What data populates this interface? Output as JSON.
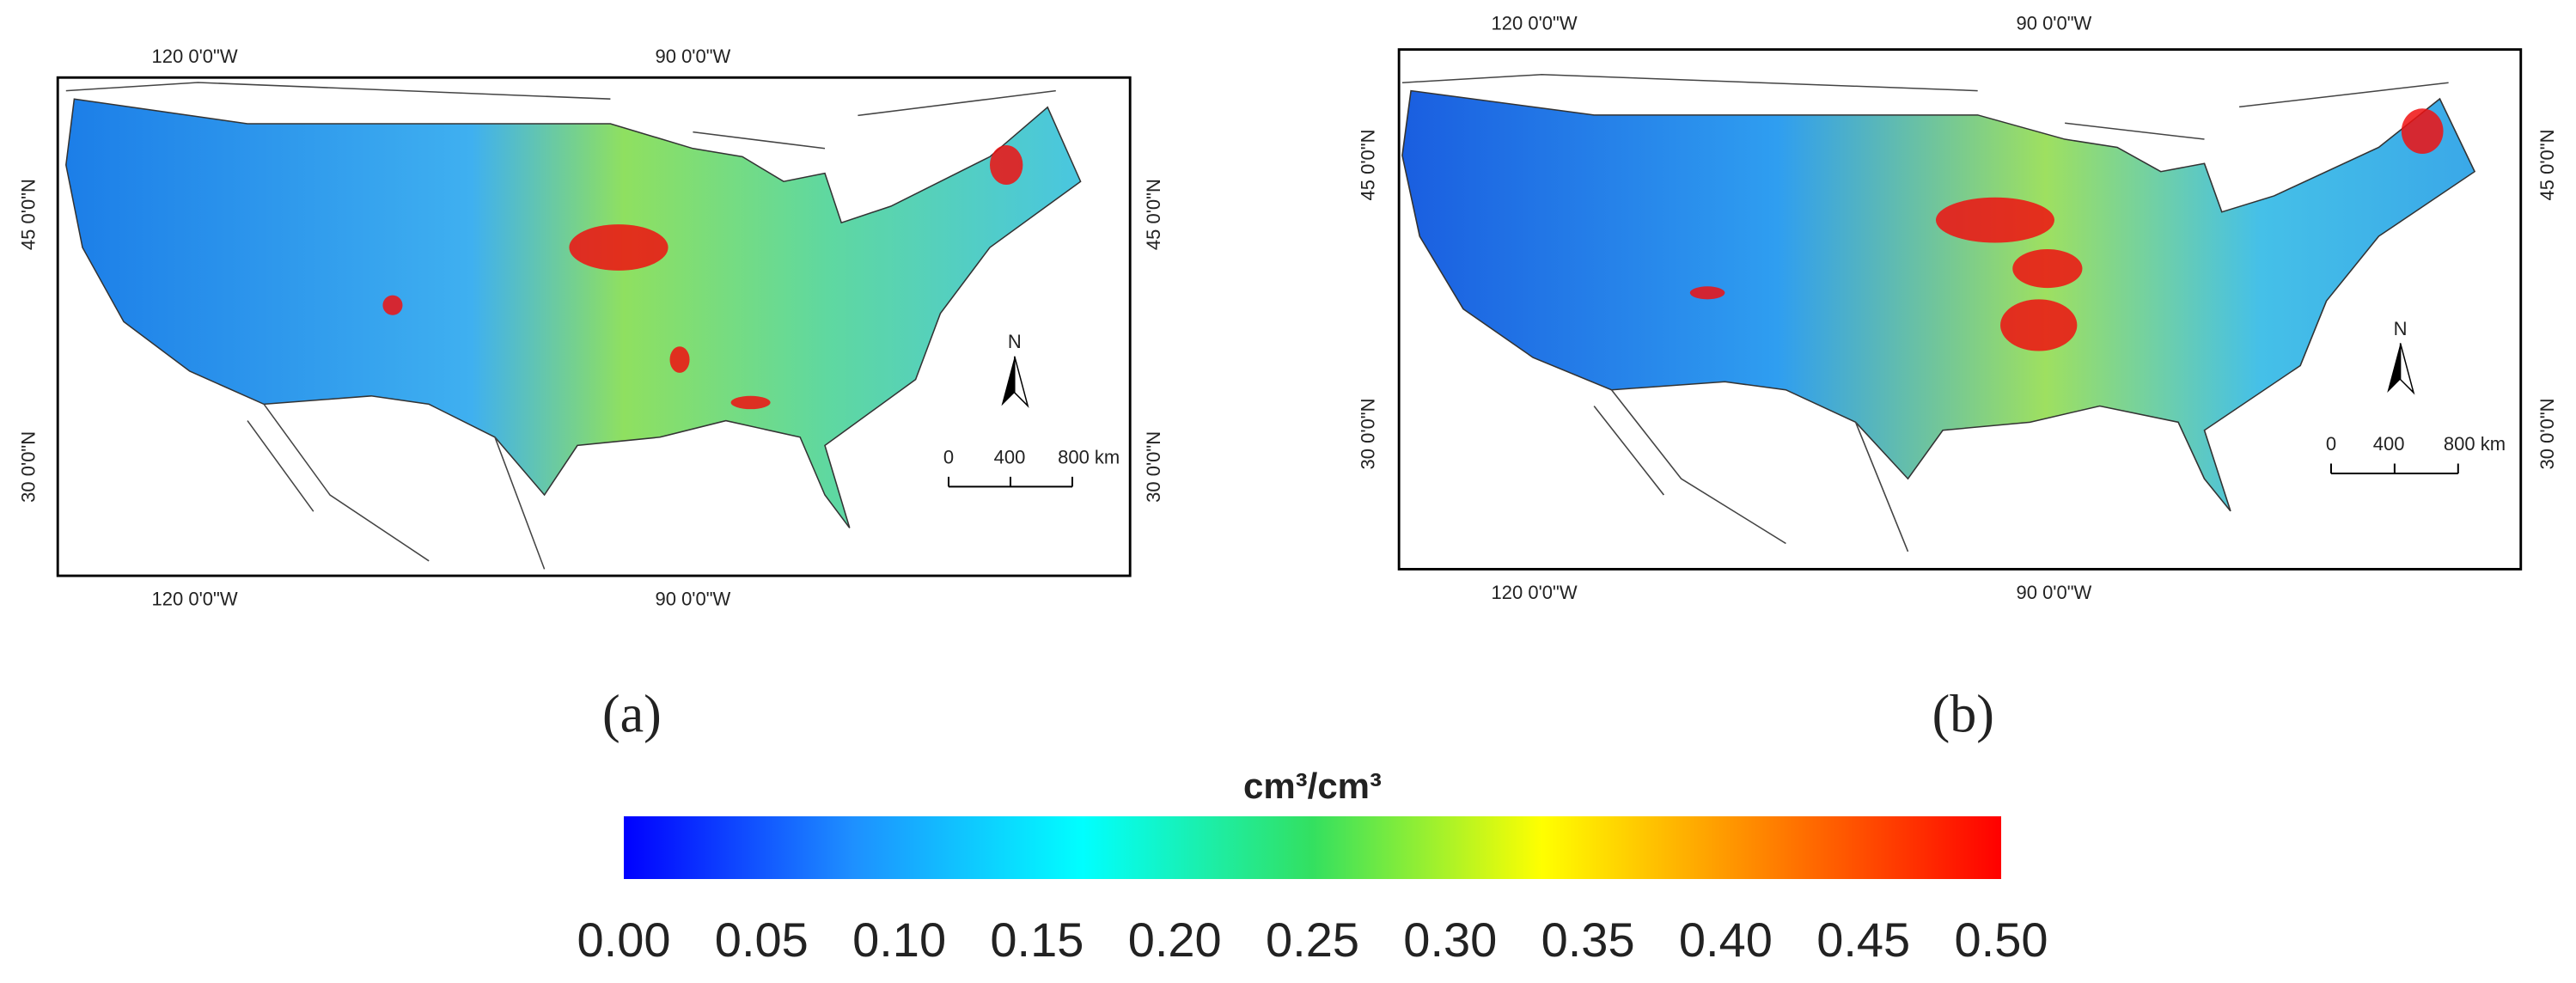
{
  "panels": [
    {
      "label": "(a)",
      "lon_labels": [
        "120 0'0\"W",
        "90 0'0\"W"
      ],
      "lat_labels": [
        "45 0'0\"N",
        "30 0'0\"N"
      ],
      "north": "N",
      "scale_bar": [
        "0",
        "400",
        "800 km"
      ]
    },
    {
      "label": "(b)",
      "lon_labels": [
        "120 0'0\"W",
        "90 0'0\"W"
      ],
      "lat_labels": [
        "45 0'0\"N",
        "30 0'0\"N"
      ],
      "north": "N",
      "scale_bar": [
        "0",
        "400",
        "800 km"
      ]
    }
  ],
  "colorbar": {
    "title": "cm³/cm³",
    "range": [
      0,
      0.5
    ],
    "colors": [
      "#0000ff",
      "#1e90ff",
      "#00ffff",
      "#33e060",
      "#ffff00",
      "#ff8000",
      "#ff0000"
    ],
    "ticks": [
      {
        "value": 0,
        "label": "0.00"
      },
      {
        "value": 0.05,
        "label": "0.05"
      },
      {
        "value": 0.1,
        "label": "0.10"
      },
      {
        "value": 0.15,
        "label": "0.15"
      },
      {
        "value": 0.2,
        "label": "0.20"
      },
      {
        "value": 0.25,
        "label": "0.25"
      },
      {
        "value": 0.3,
        "label": "0.30"
      },
      {
        "value": 0.35,
        "label": "0.35"
      },
      {
        "value": 0.4,
        "label": "0.40"
      },
      {
        "value": 0.45,
        "label": "0.45"
      },
      {
        "value": 0.5,
        "label": "0.50"
      }
    ]
  }
}
